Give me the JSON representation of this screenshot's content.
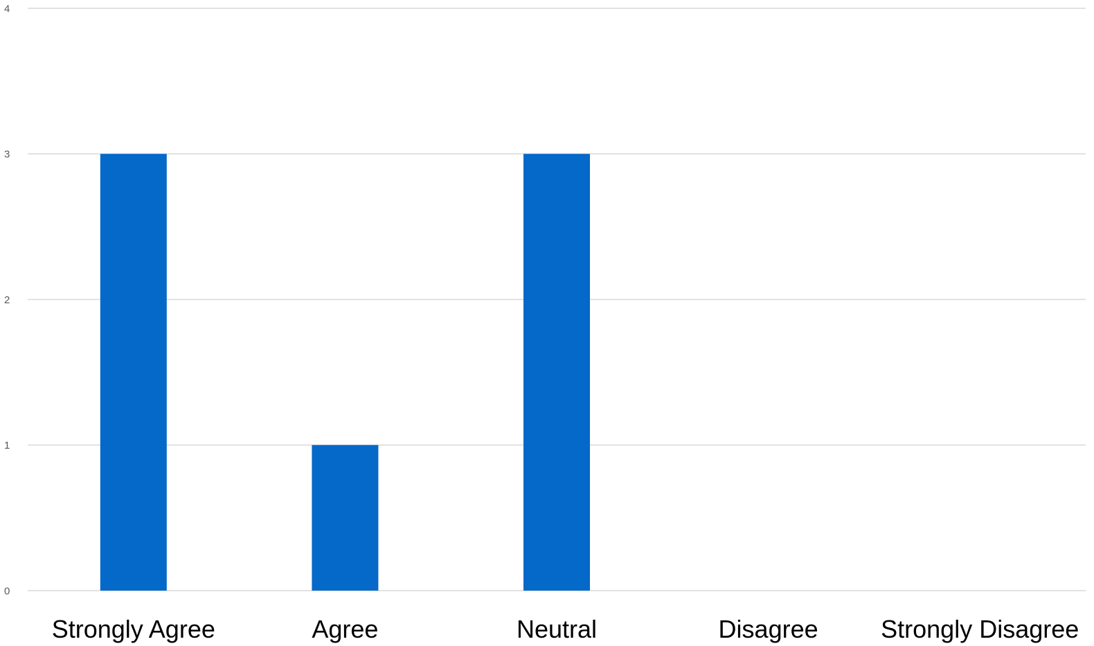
{
  "chart_data": {
    "type": "bar",
    "categories": [
      "Strongly Agree",
      "Agree",
      "Neutral",
      "Disagree",
      "Strongly Disagree"
    ],
    "values": [
      3,
      1,
      3,
      0,
      0
    ],
    "ylim": [
      0,
      4
    ],
    "yticks": [
      "0",
      "1",
      "2",
      "3",
      "4"
    ],
    "grid": true,
    "legend": "none",
    "title": "",
    "xlabel": "",
    "ylabel": "",
    "colors": {
      "bar": "#0469c8",
      "gridline": "#d9d9d9",
      "ytick_text": "#595959",
      "xtick_text": "#000000"
    }
  }
}
